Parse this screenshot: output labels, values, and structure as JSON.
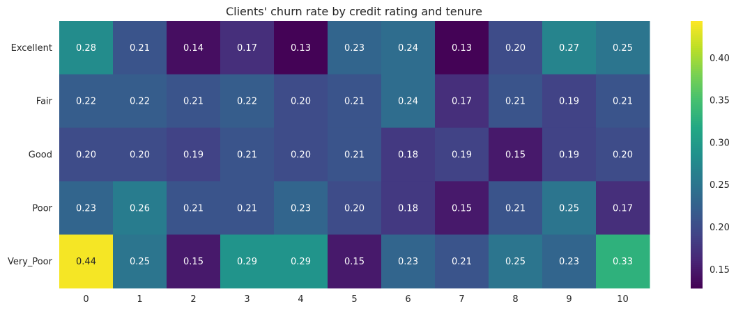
{
  "chart_data": {
    "type": "heatmap",
    "title": "Clients' churn rate by credit rating and tenure",
    "xlabel": "",
    "ylabel": "",
    "x": [
      "0",
      "1",
      "2",
      "3",
      "4",
      "5",
      "6",
      "7",
      "8",
      "9",
      "10"
    ],
    "y": [
      "Excellent",
      "Fair",
      "Good",
      "Poor",
      "Very_Poor"
    ],
    "values": [
      [
        0.28,
        0.21,
        0.14,
        0.17,
        0.13,
        0.23,
        0.24,
        0.13,
        0.2,
        0.27,
        0.25
      ],
      [
        0.22,
        0.22,
        0.21,
        0.22,
        0.2,
        0.21,
        0.24,
        0.17,
        0.21,
        0.19,
        0.21
      ],
      [
        0.2,
        0.2,
        0.19,
        0.21,
        0.2,
        0.21,
        0.18,
        0.19,
        0.15,
        0.19,
        0.2
      ],
      [
        0.23,
        0.26,
        0.21,
        0.21,
        0.23,
        0.2,
        0.18,
        0.15,
        0.21,
        0.25,
        0.17
      ],
      [
        0.44,
        0.25,
        0.15,
        0.29,
        0.29,
        0.15,
        0.23,
        0.21,
        0.25,
        0.23,
        0.33
      ]
    ],
    "value_format": "0.00",
    "colormap": "viridis",
    "color_range": [
      0.128,
      0.444
    ],
    "colorbar_ticks": [
      "0.15",
      "0.20",
      "0.25",
      "0.30",
      "0.35",
      "0.40"
    ],
    "grid": false,
    "legend": "colorbar-right"
  }
}
